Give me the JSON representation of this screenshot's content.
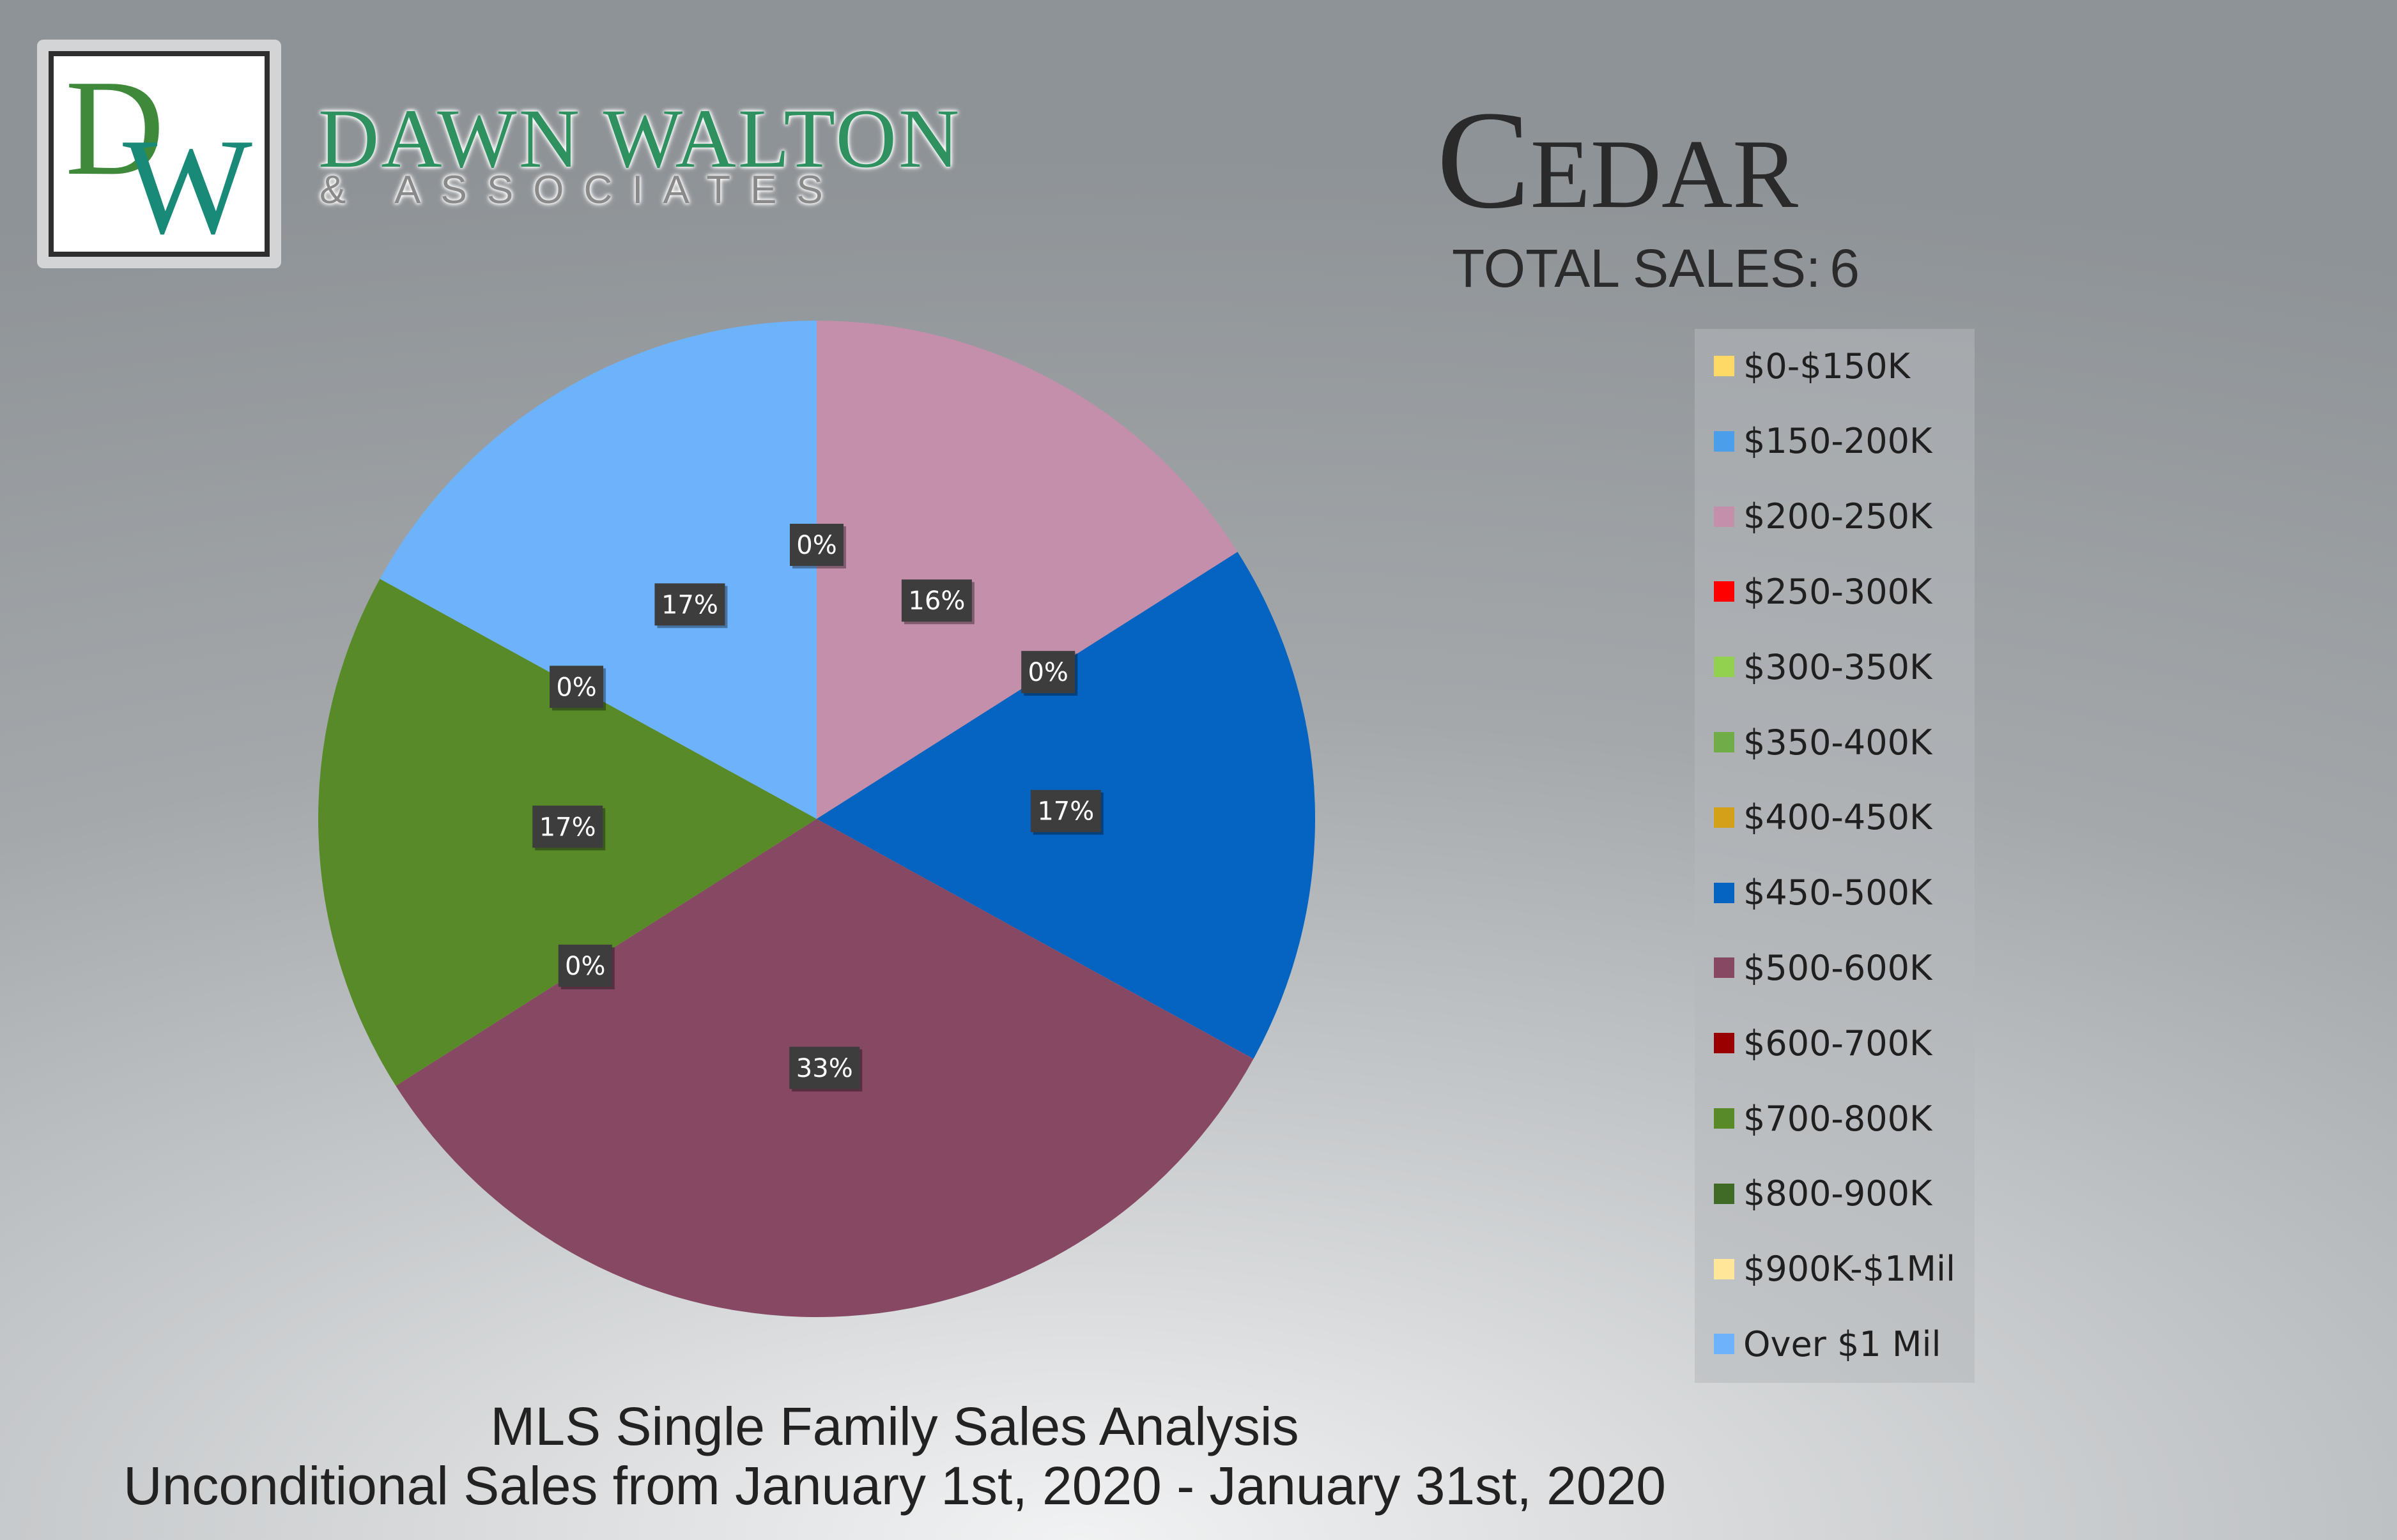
{
  "brand": {
    "logo_letters": "DW",
    "name": "DAWN WALTON",
    "subtitle": "& ASSOCIATES"
  },
  "header": {
    "title": "Cedar",
    "total_label": "TOTAL SALES:",
    "total_value": "6"
  },
  "footer": {
    "line1": "MLS Single Family Sales Analysis",
    "line2": "Unconditional Sales from January 1st, 2020 - January 31st, 2020"
  },
  "chart_data": {
    "type": "pie",
    "title": "",
    "legend_position": "right",
    "slices": [
      {
        "label": "$0-$150K",
        "value": 0,
        "pct_label": "0%",
        "color": "#ffd966"
      },
      {
        "label": "$150-200K",
        "value": 0,
        "pct_label": "0%",
        "color": "#4a9eea"
      },
      {
        "label": "$200-250K",
        "value": 16,
        "pct_label": "16%",
        "color": "#c48fab"
      },
      {
        "label": "$250-300K",
        "value": 0,
        "pct_label": "0%",
        "color": "#ff0000"
      },
      {
        "label": "$300-350K",
        "value": 0,
        "pct_label": "0%",
        "color": "#92d050"
      },
      {
        "label": "$350-400K",
        "value": 0,
        "pct_label": "0%",
        "color": "#70ad47"
      },
      {
        "label": "$400-450K",
        "value": 0,
        "pct_label": "0%",
        "color": "#d4a017"
      },
      {
        "label": "$450-500K",
        "value": 17,
        "pct_label": "17%",
        "color": "#0563c1"
      },
      {
        "label": "$500-600K",
        "value": 33,
        "pct_label": "33%",
        "color": "#874864"
      },
      {
        "label": "$600-700K",
        "value": 0,
        "pct_label": "0%",
        "color": "#990000"
      },
      {
        "label": "$700-800K",
        "value": 17,
        "pct_label": "17%",
        "color": "#588a28"
      },
      {
        "label": "$800-900K",
        "value": 0,
        "pct_label": "0%",
        "color": "#3f6b27"
      },
      {
        "label": "$900K-$1Mil",
        "value": 0,
        "pct_label": "0%",
        "color": "#ffe699"
      },
      {
        "label": "Over $1 Mil",
        "value": 17,
        "pct_label": "17%",
        "color": "#6db3fb"
      }
    ]
  }
}
